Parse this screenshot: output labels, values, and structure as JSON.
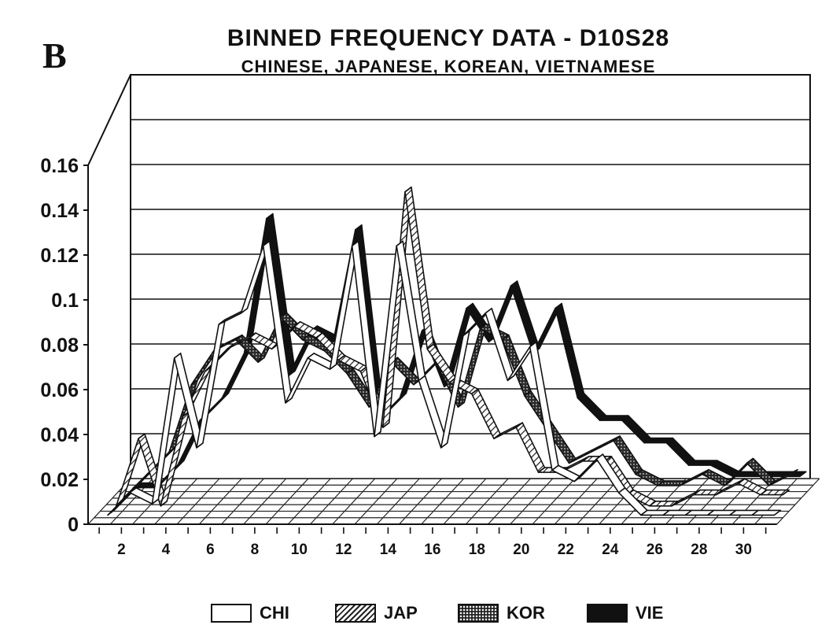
{
  "panel_label": "B",
  "chart_data": {
    "type": "line",
    "title": "BINNED FREQUENCY DATA - D10S28",
    "subtitle": "CHINESE, JAPANESE, KOREAN, VIETNAMESE",
    "xlabel": "",
    "ylabel": "",
    "ylim": [
      0,
      0.16
    ],
    "y_ticks": [
      "0",
      "0.02",
      "0.04",
      "0.06",
      "0.08",
      "0.1",
      "0.12",
      "0.14",
      "0.16"
    ],
    "x_ticks": [
      "2",
      "4",
      "6",
      "8",
      "10",
      "12",
      "14",
      "16",
      "18",
      "20",
      "22",
      "24",
      "26",
      "28",
      "30"
    ],
    "x": [
      1,
      2,
      3,
      4,
      5,
      6,
      7,
      8,
      9,
      10,
      11,
      12,
      13,
      14,
      15,
      16,
      17,
      18,
      19,
      20,
      21,
      22,
      23,
      24,
      25,
      26,
      27,
      28,
      29,
      30,
      31
    ],
    "grid": true,
    "series": [
      {
        "name": "CHI",
        "color": "#ffffff",
        "values": [
          0,
          0.01,
          0.005,
          0.07,
          0.03,
          0.085,
          0.09,
          0.12,
          0.05,
          0.07,
          0.065,
          0.12,
          0.035,
          0.12,
          0.06,
          0.03,
          0.08,
          0.09,
          0.06,
          0.075,
          0.02,
          0.015,
          0.025,
          0.01,
          0,
          0,
          0,
          0,
          0,
          0,
          0
        ]
      },
      {
        "name": "JAP",
        "color": "#555555",
        "values": [
          0,
          0.03,
          0,
          0.04,
          0.06,
          0.07,
          0.075,
          0.07,
          0.08,
          0.075,
          0.065,
          0.06,
          0.035,
          0.14,
          0.07,
          0.055,
          0.05,
          0.03,
          0.035,
          0.015,
          0.015,
          0.02,
          0.02,
          0.005,
          0,
          0,
          0.005,
          0.005,
          0.01,
          0.005,
          0.005
        ]
      },
      {
        "name": "KOR",
        "color": "#333333",
        "values": [
          0,
          0.01,
          0.02,
          0.05,
          0.065,
          0.07,
          0.06,
          0.08,
          0.07,
          0.065,
          0.055,
          0.04,
          0.06,
          0.05,
          0.06,
          0.04,
          0.075,
          0.07,
          0.045,
          0.03,
          0.015,
          0.02,
          0.025,
          0.01,
          0.005,
          0.005,
          0.01,
          0.005,
          0.015,
          0.005,
          0.01
        ]
      },
      {
        "name": "VIE",
        "color": "#111111",
        "values": [
          0,
          0,
          0.01,
          0.03,
          0.04,
          0.06,
          0.12,
          0.05,
          0.07,
          0.065,
          0.115,
          0.03,
          0.04,
          0.07,
          0.045,
          0.08,
          0.065,
          0.09,
          0.06,
          0.08,
          0.04,
          0.03,
          0.03,
          0.02,
          0.02,
          0.01,
          0.01,
          0.005,
          0.005,
          0.005,
          0.005
        ]
      }
    ],
    "legend": [
      "CHI",
      "JAP",
      "KOR",
      "VIE"
    ],
    "legend_position": "bottom"
  }
}
